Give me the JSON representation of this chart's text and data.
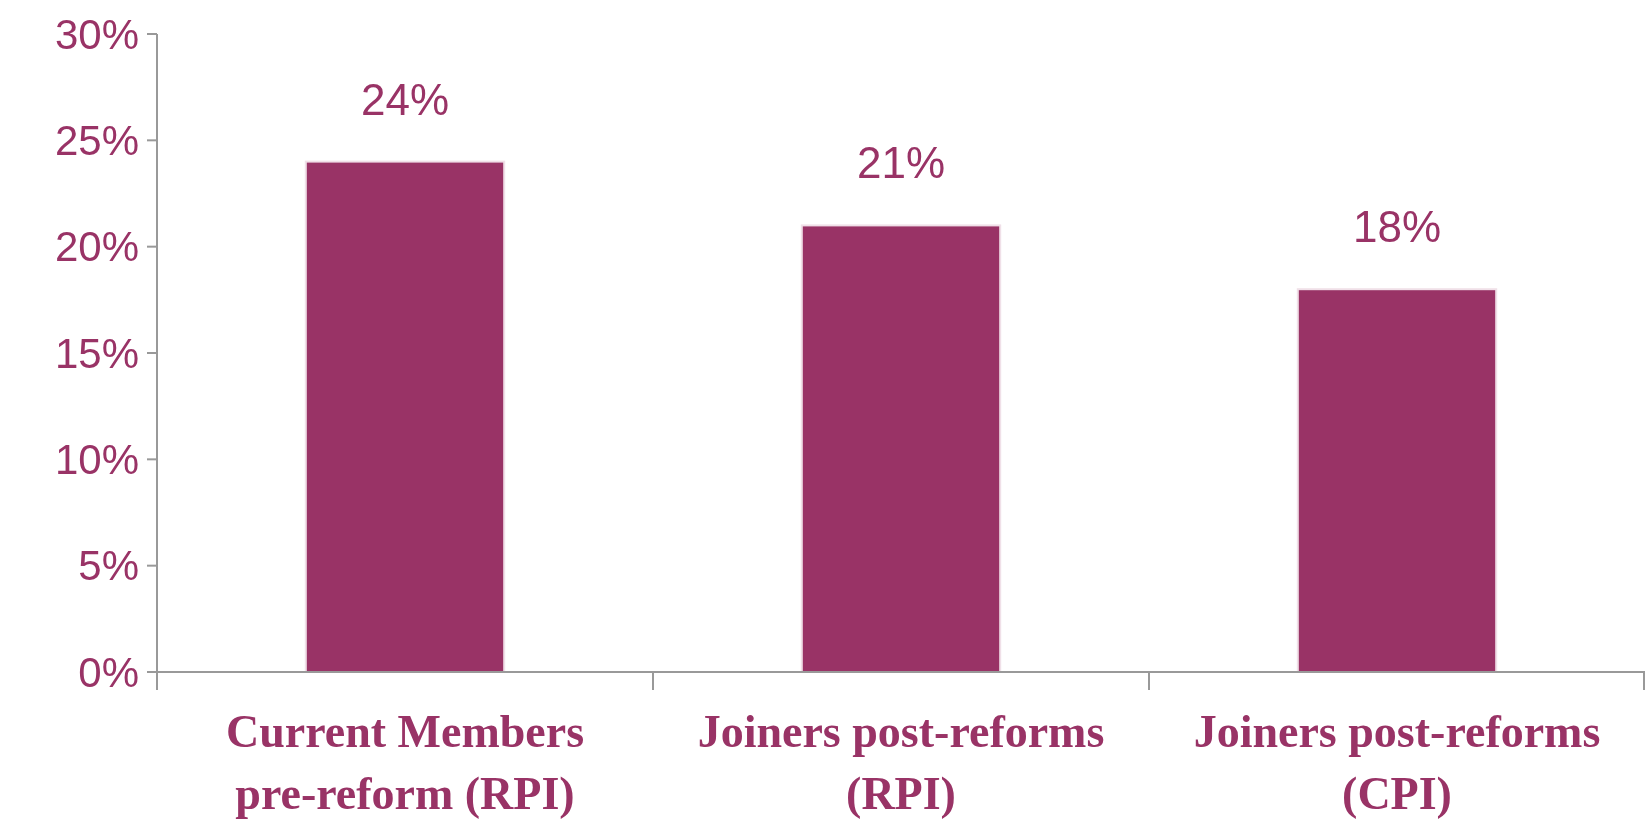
{
  "chart_data": {
    "type": "bar",
    "categories": [
      "Current Members pre-reform (RPI)",
      "Joiners post-reforms (RPI)",
      "Joiners post-reforms (CPI)"
    ],
    "values": [
      24,
      21,
      18
    ],
    "value_labels": [
      "24%",
      "21%",
      "18%"
    ],
    "color": "#993366",
    "ylim": [
      0,
      30
    ],
    "yticks": [
      {
        "value": 0,
        "label": "0%"
      },
      {
        "value": 5,
        "label": "5%"
      },
      {
        "value": 10,
        "label": "10%"
      },
      {
        "value": 15,
        "label": "15%"
      },
      {
        "value": 20,
        "label": "20%"
      },
      {
        "value": 25,
        "label": "25%"
      },
      {
        "value": 30,
        "label": "30%"
      }
    ],
    "grid": false
  }
}
